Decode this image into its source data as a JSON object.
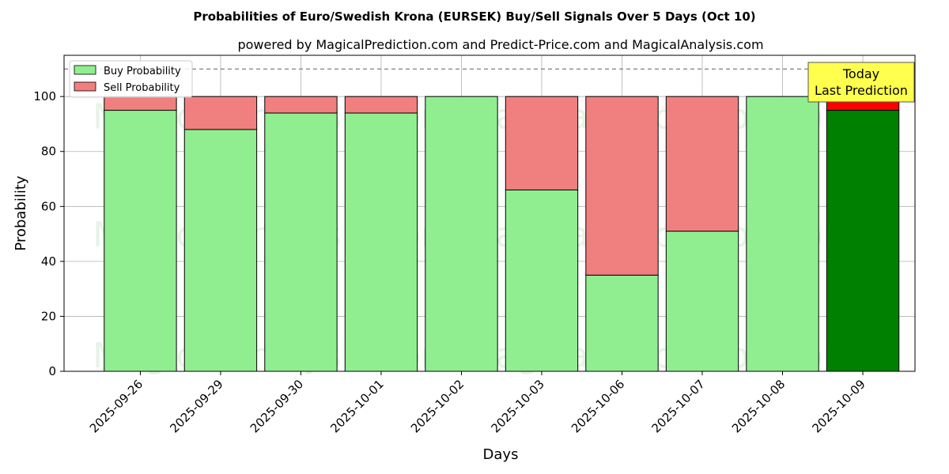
{
  "chart_data": {
    "type": "bar",
    "stacked": true,
    "title": "Probabilities of Euro/Swedish Krona (EURSEK) Buy/Sell Signals Over 5 Days (Oct 10)",
    "subtitle": "powered by MagicalPrediction.com and Predict-Price.com and MagicalAnalysis.com",
    "xlabel": "Days",
    "ylabel": "Probability",
    "ylim": [
      0,
      115
    ],
    "yticks": [
      0,
      20,
      40,
      60,
      80,
      100
    ],
    "grid": true,
    "reference_line": 110,
    "legend_position": "top-left",
    "categories": [
      "2025-09-26",
      "2025-09-29",
      "2025-09-30",
      "2025-10-01",
      "2025-10-02",
      "2025-10-03",
      "2025-10-06",
      "2025-10-07",
      "2025-10-08",
      "2025-10-09"
    ],
    "series": [
      {
        "name": "Buy Probability",
        "color": "#90ee90",
        "values": [
          95,
          88,
          94,
          94,
          100,
          66,
          35,
          51,
          100,
          95
        ]
      },
      {
        "name": "Sell Probability",
        "color": "#f08080",
        "values": [
          5,
          12,
          6,
          6,
          0,
          34,
          65,
          49,
          0,
          5
        ]
      }
    ],
    "highlight": {
      "index": 9,
      "buy_color": "#008000",
      "sell_color": "#ff0000"
    },
    "annotation": {
      "lines": [
        "Today",
        "Last Prediction"
      ],
      "background": "#ffff4d"
    },
    "watermarks": [
      "MagicalAnalysis.com",
      "MagicalPrediction.com"
    ]
  }
}
